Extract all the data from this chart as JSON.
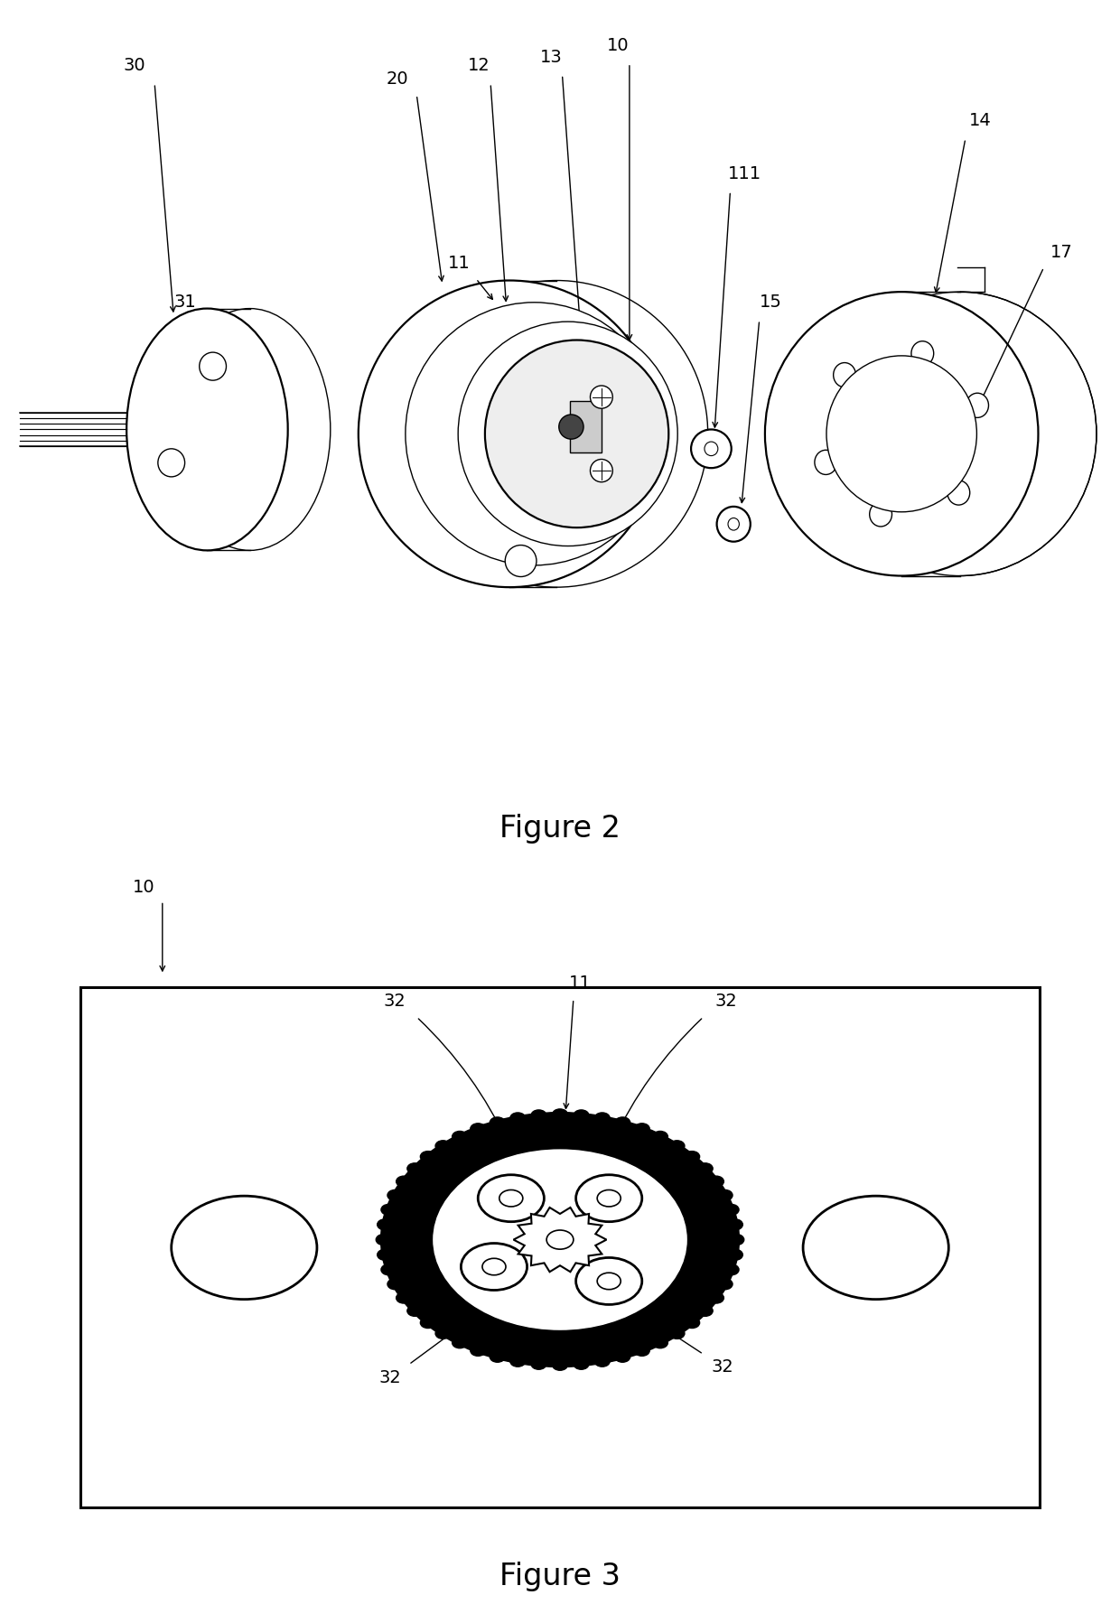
{
  "bg_color": "#ffffff",
  "line_color": "#000000",
  "fig2_title": "Figure 2",
  "fig3_title": "Figure 3",
  "lw_main": 1.6,
  "lw_thin": 1.0,
  "label_fs": 14,
  "title_fs": 24
}
